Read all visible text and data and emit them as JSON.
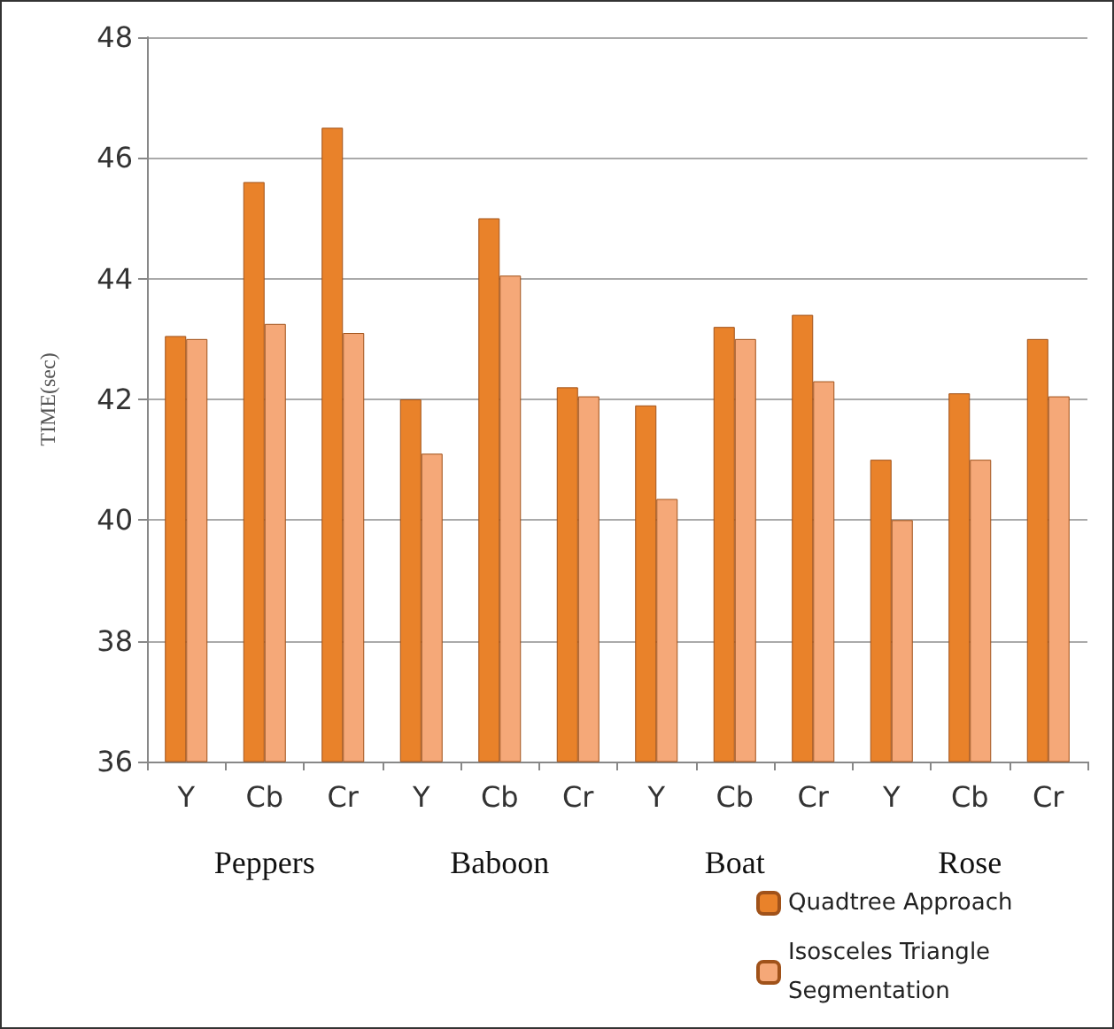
{
  "chart_data": {
    "type": "bar",
    "ylabel": "TIME(sec)",
    "categories": [
      "Y",
      "Cb",
      "Cr",
      "Y",
      "Cb",
      "Cr",
      "Y",
      "Cb",
      "Cr",
      "Y",
      "Cb",
      "Cr"
    ],
    "series": [
      {
        "name": "Quadtree Approach",
        "color": "#e9822a",
        "values": [
          43.05,
          45.6,
          46.5,
          42.0,
          45.0,
          42.2,
          41.9,
          43.2,
          43.4,
          41.0,
          42.1,
          43.0
        ]
      },
      {
        "name": "Isosceles Triangle Segmentation",
        "color": "#f5a878",
        "values": [
          43.0,
          43.25,
          43.1,
          41.1,
          44.05,
          42.05,
          40.35,
          43.0,
          42.3,
          40.0,
          41.0,
          42.05
        ]
      }
    ],
    "annotations": [
      "Peppers",
      "Baboon",
      "Boat",
      "Rose"
    ],
    "ylim": [
      36,
      48
    ],
    "yticks": [
      36,
      38,
      40,
      42,
      44,
      46,
      48
    ],
    "grid": "y",
    "legend": "bottom right"
  }
}
